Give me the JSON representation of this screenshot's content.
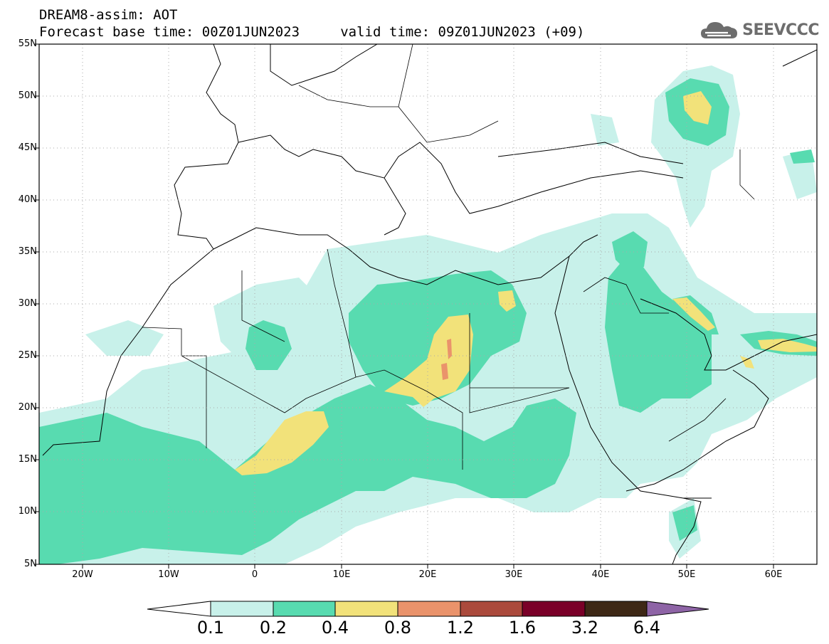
{
  "header": {
    "line1": "DREAM8-assim: AOT",
    "line2": "Forecast base time: 00Z01JUN2023     valid time: 09Z01JUN2023 (+09)"
  },
  "logo": {
    "text": "SEEVCCC",
    "icon": "cloud-icon"
  },
  "map": {
    "lat_labels": [
      "55N",
      "50N",
      "45N",
      "40N",
      "35N",
      "30N",
      "25N",
      "20N",
      "15N",
      "10N",
      "5N"
    ],
    "lon_labels": [
      "20W",
      "10W",
      "0",
      "10E",
      "20E",
      "30E",
      "40E",
      "50E",
      "60E"
    ],
    "lat_range": [
      5,
      55
    ],
    "lon_range": [
      -25,
      65
    ],
    "grid": "dotted"
  },
  "colorbar": {
    "labels": [
      "0.1",
      "0.2",
      "0.4",
      "0.8",
      "1.2",
      "1.6",
      "3.2",
      "6.4"
    ],
    "colors": [
      "#ffffff",
      "#c8f1ea",
      "#58dbb0",
      "#f2e27a",
      "#ea936b",
      "#ab4a3c",
      "#7a0028",
      "#3e2816",
      "#8e64a6"
    ]
  }
}
